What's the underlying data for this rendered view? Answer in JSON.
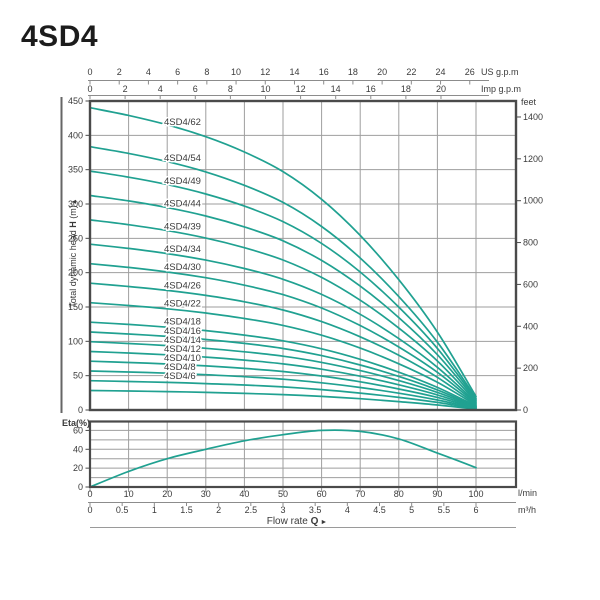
{
  "title": "4SD4",
  "chart_data": {
    "type": "line",
    "main_chart": {
      "ylabel_parts": {
        "t1": "Total dynamic head ",
        "t2": "H",
        "t3": " (m)",
        "arrow": "▲"
      },
      "y_ticks_m": [
        0,
        50,
        100,
        150,
        200,
        250,
        300,
        350,
        400,
        450
      ],
      "ylim_m": [
        0,
        450
      ],
      "y_unit_right": "feet",
      "feet_ticks": [
        0,
        200,
        400,
        600,
        800,
        1000,
        1200,
        1400
      ],
      "us_gpm": {
        "label": "US g.p.m",
        "ticks": [
          0,
          2,
          4,
          6,
          8,
          10,
          12,
          14,
          16,
          18,
          20,
          22,
          24,
          26
        ]
      },
      "imp_gpm": {
        "label": "Imp g.p.m",
        "ticks": [
          0,
          2,
          4,
          6,
          8,
          10,
          12,
          14,
          16,
          18,
          20
        ]
      },
      "x_lmin": [
        0,
        10,
        20,
        30,
        40,
        50,
        60,
        70,
        80,
        90,
        100
      ],
      "series": [
        {
          "label": "4SD4/62",
          "stages": 62,
          "heads_m": [
            440.2,
            429.0,
            415.4,
            398.0,
            375.7,
            347.2,
            306.9,
            254.2,
            189.7,
            113.5,
            19.8
          ]
        },
        {
          "label": "4SD4/54",
          "stages": 54,
          "heads_m": [
            383.4,
            373.7,
            361.8,
            346.7,
            327.2,
            302.4,
            267.3,
            221.4,
            165.2,
            98.8,
            17.3
          ]
        },
        {
          "label": "4SD4/49",
          "stages": 49,
          "heads_m": [
            347.9,
            339.1,
            328.3,
            314.6,
            296.9,
            274.4,
            242.6,
            200.9,
            149.9,
            89.7,
            15.7
          ]
        },
        {
          "label": "4SD4/44",
          "stages": 44,
          "heads_m": [
            312.4,
            304.5,
            294.8,
            282.5,
            266.6,
            246.4,
            217.8,
            180.4,
            134.6,
            80.5,
            14.1
          ]
        },
        {
          "label": "4SD4/39",
          "stages": 39,
          "heads_m": [
            276.9,
            269.9,
            261.3,
            250.4,
            236.3,
            218.4,
            193.1,
            159.9,
            119.3,
            71.4,
            12.5
          ]
        },
        {
          "label": "4SD4/34",
          "stages": 34,
          "heads_m": [
            241.4,
            235.3,
            227.8,
            218.3,
            206.0,
            190.4,
            168.3,
            139.4,
            104.0,
            62.2,
            10.9
          ]
        },
        {
          "label": "4SD4/30",
          "stages": 30,
          "heads_m": [
            213.0,
            207.6,
            201.0,
            192.6,
            181.8,
            168.0,
            148.5,
            123.0,
            91.8,
            54.9,
            9.6
          ]
        },
        {
          "label": "4SD4/26",
          "stages": 26,
          "heads_m": [
            184.6,
            179.9,
            174.2,
            166.9,
            157.6,
            145.6,
            128.7,
            106.6,
            79.6,
            47.6,
            8.3
          ]
        },
        {
          "label": "4SD4/22",
          "stages": 22,
          "heads_m": [
            156.2,
            152.2,
            147.4,
            141.2,
            133.3,
            123.2,
            108.9,
            90.2,
            67.3,
            40.3,
            7.0
          ]
        },
        {
          "label": "4SD4/18",
          "stages": 18,
          "heads_m": [
            127.8,
            124.6,
            120.6,
            115.6,
            109.1,
            100.8,
            89.1,
            73.8,
            55.1,
            32.9,
            5.8
          ]
        },
        {
          "label": "4SD4/16",
          "stages": 16,
          "heads_m": [
            113.6,
            110.7,
            107.2,
            102.7,
            97.0,
            89.6,
            79.2,
            65.6,
            49.0,
            29.3,
            5.1
          ]
        },
        {
          "label": "4SD4/14",
          "stages": 14,
          "heads_m": [
            99.4,
            96.9,
            93.8,
            89.9,
            84.8,
            78.4,
            69.3,
            57.4,
            42.8,
            25.6,
            4.5
          ]
        },
        {
          "label": "4SD4/12",
          "stages": 12,
          "heads_m": [
            85.2,
            83.0,
            80.4,
            77.0,
            72.7,
            67.2,
            59.4,
            49.2,
            36.7,
            22.0,
            3.8
          ]
        },
        {
          "label": "4SD4/10",
          "stages": 10,
          "heads_m": [
            71.0,
            69.2,
            67.0,
            64.2,
            60.6,
            56.0,
            49.5,
            41.0,
            30.6,
            18.3,
            3.2
          ]
        },
        {
          "label": "4SD4/8",
          "stages": 8,
          "heads_m": [
            56.8,
            55.4,
            53.6,
            51.4,
            48.5,
            44.8,
            39.6,
            32.8,
            24.5,
            14.6,
            2.6
          ]
        },
        {
          "label": "4SD4/6",
          "stages": 6,
          "heads_m": [
            42.6,
            41.5,
            40.2,
            38.5,
            36.4,
            33.6,
            29.7,
            24.6,
            18.4,
            11.0,
            1.9
          ]
        },
        {
          "label": "",
          "stages": 4,
          "heads_m": [
            28.4,
            27.7,
            26.8,
            25.7,
            24.2,
            22.4,
            19.8,
            16.4,
            12.2,
            7.3,
            1.3
          ]
        }
      ]
    },
    "eta_chart": {
      "label": "Eta(%)",
      "y_ticks": [
        0,
        20,
        40,
        60
      ],
      "y_grid": [
        10,
        20,
        30,
        40,
        50,
        60
      ],
      "ylim": [
        0,
        69
      ],
      "x_lmin": [
        0,
        10,
        20,
        30,
        40,
        50,
        60,
        70,
        80,
        90,
        100
      ],
      "eta_percent": [
        0,
        16.5,
        30,
        40,
        49,
        55.5,
        60,
        59,
        51,
        36,
        20.5
      ]
    },
    "x_axis": {
      "lmin": {
        "label": "l/min",
        "ticks": [
          0,
          10,
          20,
          30,
          40,
          50,
          60,
          70,
          80,
          90,
          100
        ]
      },
      "m3h": {
        "label": "m³/h",
        "ticks": [
          0,
          0.5,
          1,
          1.5,
          2,
          2.5,
          3,
          3.5,
          4,
          4.5,
          5,
          5.5,
          6
        ]
      },
      "flow_label": {
        "t1": "Flow rate ",
        "t2": "Q",
        "arrow": " ►"
      }
    },
    "colors": {
      "curve": "#20a191",
      "grid": "#9e9e9e",
      "frame": "#4a4a4a",
      "text": "#3b3b3b",
      "axis_line": "#8c8c8c"
    }
  }
}
